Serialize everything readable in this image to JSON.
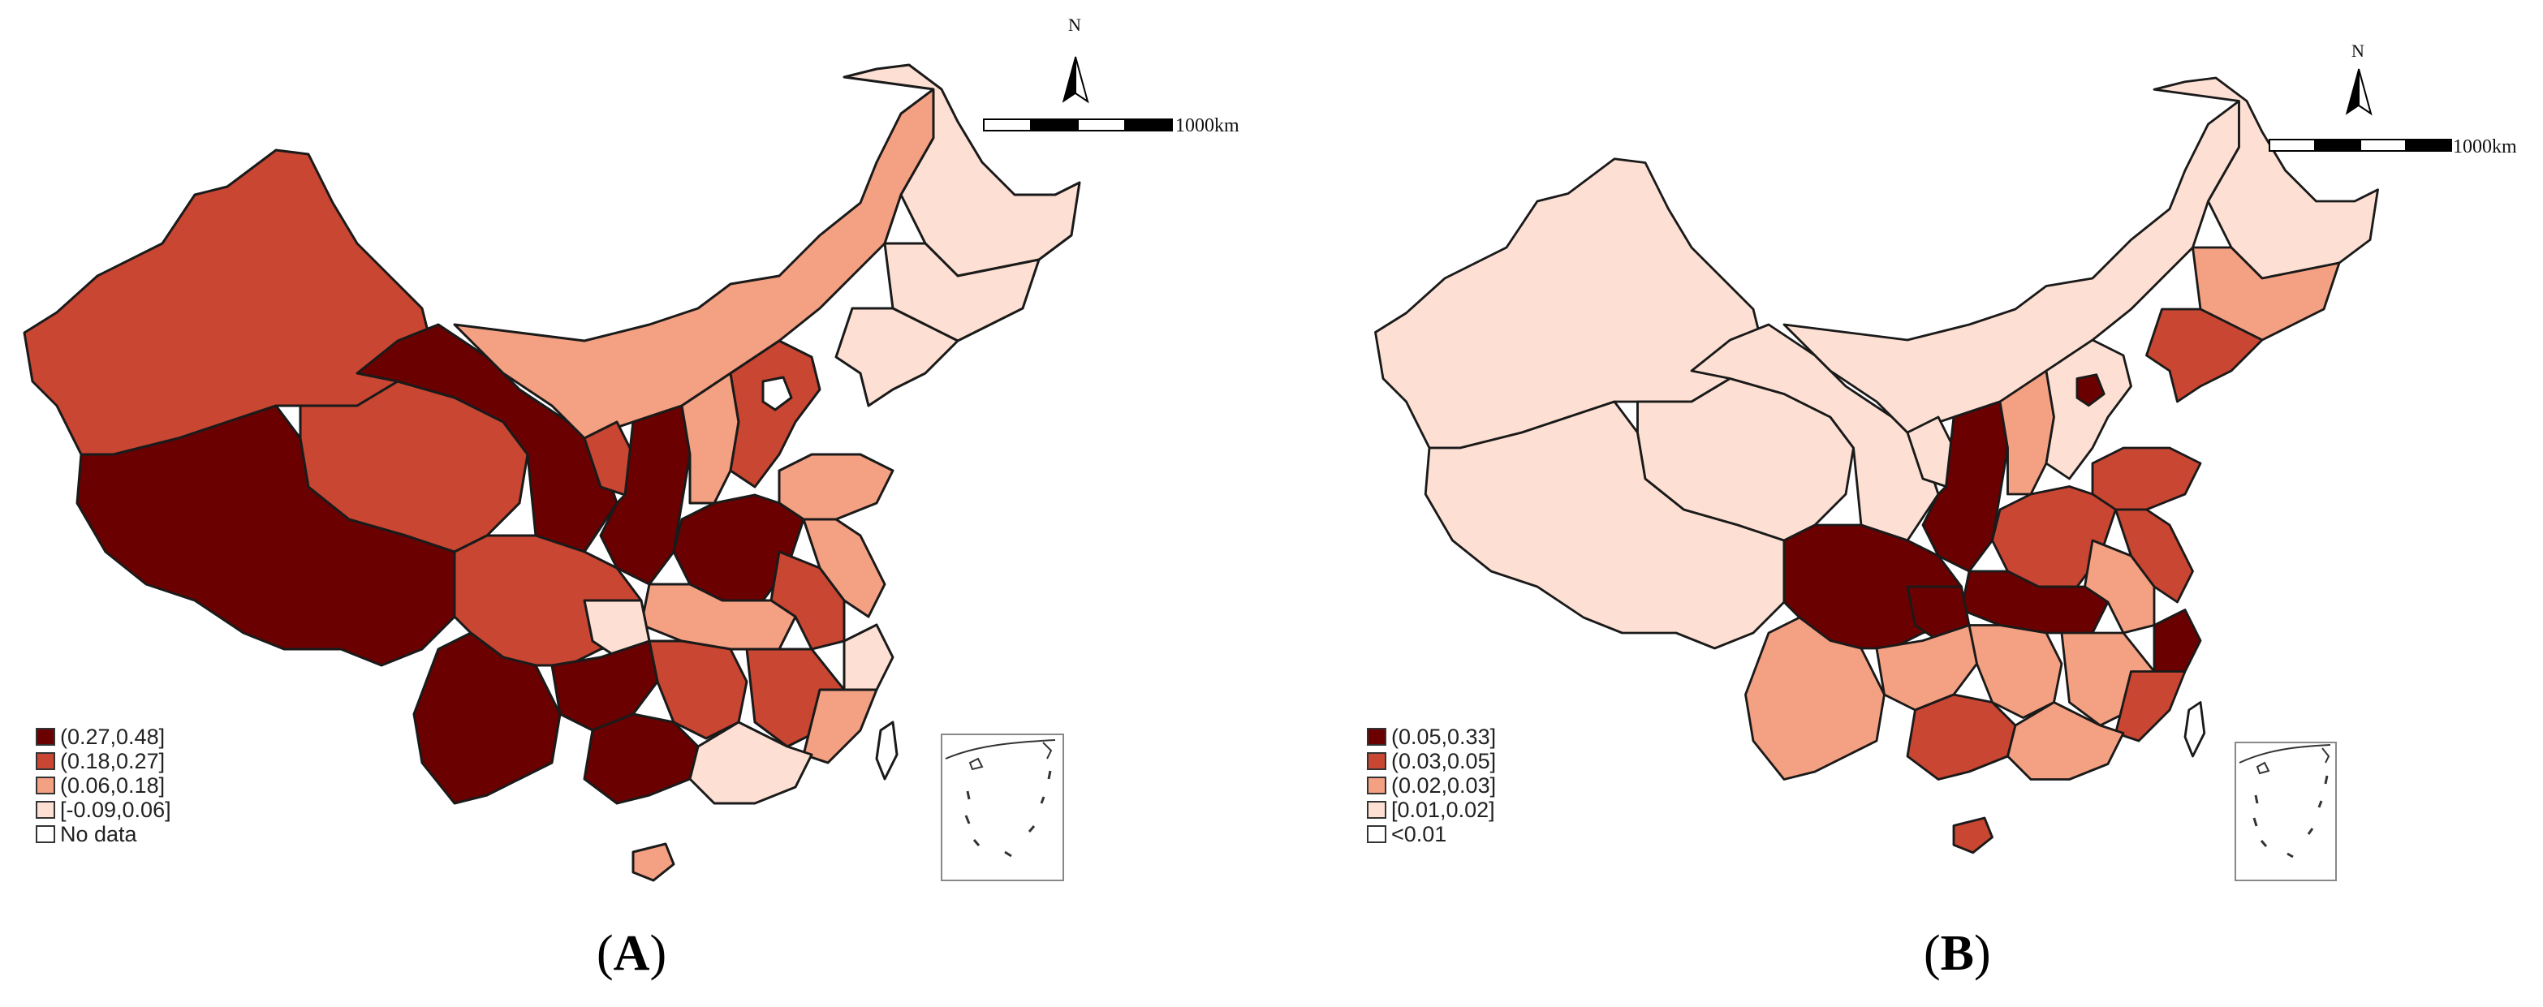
{
  "panels": [
    {
      "id": "A",
      "caption_open": "(",
      "caption_letter": "A",
      "caption_close": ")",
      "north_label": "N",
      "scale_label": "1000km",
      "legend": [
        {
          "label": "(0.27,0.48]",
          "color": "#6b0000"
        },
        {
          "label": "(0.18,0.27]",
          "color": "#c84632"
        },
        {
          "label": "(0.06,0.18]",
          "color": "#f4a082"
        },
        {
          "label": "[-0.09,0.06]",
          "color": "#fde0d3"
        },
        {
          "label": "No data",
          "color": "#ffffff"
        }
      ]
    },
    {
      "id": "B",
      "caption_open": "(",
      "caption_letter": "B",
      "caption_close": ")",
      "north_label": "N",
      "scale_label": "1000km",
      "legend": [
        {
          "label": "(0.05,0.33]",
          "color": "#6b0000"
        },
        {
          "label": "(0.03,0.05]",
          "color": "#c84632"
        },
        {
          "label": "(0.02,0.03]",
          "color": "#f4a082"
        },
        {
          "label": "[0.01,0.02]",
          "color": "#fde0d3"
        },
        {
          "label": "<0.01",
          "color": "#ffffff"
        }
      ]
    }
  ],
  "colors": {
    "dark": "#6b0000",
    "red": "#c84632",
    "salmon": "#f4a082",
    "pale": "#fde0d3",
    "none": "#ffffff"
  }
}
